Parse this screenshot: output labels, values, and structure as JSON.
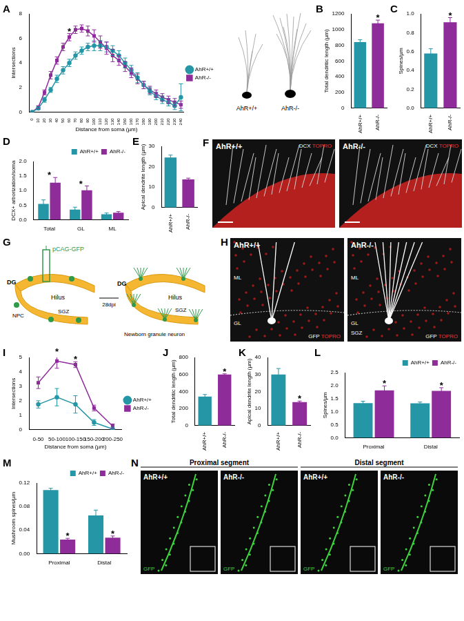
{
  "chart_data": [
    {
      "panel": "A",
      "type": "line",
      "ylabel": "Intersections",
      "xlabel": "Distance from soma (µm)",
      "categories": [
        "0",
        "10",
        "20",
        "30",
        "40",
        "50",
        "60",
        "70",
        "80",
        "90",
        "100",
        "110",
        "120",
        "130",
        "140",
        "150",
        "160",
        "170",
        "180",
        "190",
        "200",
        "210",
        "220",
        "230",
        "240"
      ],
      "ylim": [
        0,
        8
      ],
      "yticks": [
        0,
        2,
        4,
        6,
        8
      ],
      "grid": false,
      "legend": "right",
      "series": [
        {
          "name": "AhR+/+",
          "color": "#2596a6",
          "marker": "circle",
          "values": [
            0,
            0.3,
            1,
            1.8,
            2.7,
            3.4,
            4,
            4.6,
            5,
            5.3,
            5.4,
            5.4,
            5.3,
            5,
            4.6,
            4,
            3.4,
            2.8,
            2.2,
            1.7,
            1.3,
            1,
            0.8,
            0.5,
            1.2
          ],
          "errors": [
            0,
            0.1,
            0.2,
            0.2,
            0.3,
            0.3,
            0.3,
            0.3,
            0.3,
            0.3,
            0.4,
            0.4,
            0.4,
            0.4,
            0.4,
            0.4,
            0.4,
            0.4,
            0.3,
            0.3,
            0.3,
            0.3,
            0.3,
            0.3,
            1.1
          ]
        },
        {
          "name": "AhR-/-",
          "color": "#8e2c9a",
          "marker": "square",
          "values": [
            0,
            0.4,
            1.6,
            3,
            4.2,
            5.3,
            6.1,
            6.7,
            6.8,
            6.6,
            6.2,
            5.7,
            5.2,
            4.6,
            4.2,
            3.7,
            3.2,
            2.7,
            2.2,
            1.8,
            1.5,
            1.2,
            1,
            0.8,
            0.6
          ],
          "errors": [
            0,
            0.1,
            0.2,
            0.3,
            0.3,
            0.3,
            0.3,
            0.3,
            0.3,
            0.4,
            0.5,
            0.5,
            0.5,
            0.5,
            0.4,
            0.4,
            0.4,
            0.4,
            0.3,
            0.3,
            0.3,
            0.3,
            0.3,
            0.3,
            0.3
          ]
        }
      ],
      "annotations": [
        {
          "text": "*",
          "category": "60"
        }
      ]
    },
    {
      "panel": "B",
      "type": "bar",
      "ylabel": "Total dendritic length (µm)",
      "categories": [
        "AhR+/+",
        "AhR-/-"
      ],
      "values": [
        840,
        1080
      ],
      "errors": [
        30,
        40
      ],
      "colors": [
        "#2596a6",
        "#8e2c9a"
      ],
      "ylim": [
        0,
        1200
      ],
      "yticks": [
        0,
        200,
        400,
        600,
        800,
        1000,
        1200
      ],
      "grid": false,
      "annotations": [
        {
          "text": "*",
          "category": "AhR-/-"
        }
      ]
    },
    {
      "panel": "C",
      "type": "bar",
      "ylabel": "Spines/µm",
      "categories": [
        "AhR+/+",
        "AhR-/-"
      ],
      "values": [
        0.58,
        0.91
      ],
      "errors": [
        0.05,
        0.05
      ],
      "colors": [
        "#2596a6",
        "#8e2c9a"
      ],
      "ylim": [
        0,
        1
      ],
      "yticks": [
        {
          "value": 0,
          "label": "0.0"
        },
        0.2,
        0.4,
        0.6,
        0.8,
        {
          "value": 1,
          "label": "1.0"
        }
      ],
      "grid": false,
      "annotations": [
        {
          "text": "*",
          "category": "AhR-/-"
        }
      ]
    },
    {
      "panel": "D",
      "type": "bar",
      "ylabel": "DCX+ arborization/soma",
      "categories": [
        "Total",
        "GL",
        "ML"
      ],
      "ylim": [
        0,
        2
      ],
      "yticks": [
        {
          "value": 0,
          "label": "0.0"
        },
        0.5,
        {
          "value": 1,
          "label": "1.0"
        },
        1.5,
        {
          "value": 2,
          "label": "2.0"
        }
      ],
      "grid": false,
      "legend": "top-right",
      "series": [
        {
          "name": "AhR+/+",
          "color": "#2596a6",
          "values": [
            0.54,
            0.35,
            0.19
          ],
          "errors": [
            0.14,
            0.08,
            0.04
          ]
        },
        {
          "name": "AhR-/-",
          "color": "#8e2c9a",
          "values": [
            1.27,
            1.01,
            0.24
          ],
          "errors": [
            0.18,
            0.15,
            0.04
          ]
        }
      ],
      "annotations": [
        {
          "text": "*",
          "category": "Total"
        },
        {
          "text": "*",
          "category": "GL"
        }
      ]
    },
    {
      "panel": "E",
      "type": "bar",
      "ylabel": "Apical dendrite length (µm)",
      "categories": [
        "AhR+/+",
        "AhR-/-"
      ],
      "values": [
        24.5,
        13.8
      ],
      "errors": [
        1.2,
        0.6
      ],
      "colors": [
        "#2596a6",
        "#8e2c9a"
      ],
      "ylim": [
        0,
        30
      ],
      "yticks": [
        0,
        10,
        20,
        30
      ],
      "grid": false
    },
    {
      "panel": "I",
      "type": "line",
      "ylabel": "Intersections",
      "xlabel": "Distance from soma (µm)",
      "categories": [
        "0-50",
        "50-100",
        "100-150",
        "150-200",
        "200-250"
      ],
      "ylim": [
        0,
        5
      ],
      "yticks": [
        0,
        1,
        2,
        3,
        4,
        5
      ],
      "grid": false,
      "legend": "right",
      "series": [
        {
          "name": "AhR+/+",
          "color": "#2596a6",
          "marker": "circle",
          "values": [
            1.75,
            2.25,
            1.75,
            0.5,
            0.05
          ],
          "errors": [
            0.25,
            0.6,
            0.6,
            0.2,
            0.05
          ]
        },
        {
          "name": "AhR-/-",
          "color": "#8e2c9a",
          "marker": "square",
          "values": [
            3.25,
            4.75,
            4.5,
            1.5,
            0.25
          ],
          "errors": [
            0.4,
            0.5,
            0.2,
            0.2,
            0.15
          ]
        }
      ],
      "annotations": [
        {
          "text": "*",
          "category": "50-100"
        },
        {
          "text": "*",
          "category": "100-150"
        }
      ]
    },
    {
      "panel": "J",
      "type": "bar",
      "ylabel": "Total dendritic length (µm)",
      "categories": [
        "AhR+/+",
        "AhR-/-"
      ],
      "values": [
        340,
        600
      ],
      "errors": [
        25,
        8
      ],
      "colors": [
        "#2596a6",
        "#8e2c9a"
      ],
      "ylim": [
        0,
        800
      ],
      "yticks": [
        0,
        200,
        400,
        600,
        800
      ],
      "grid": false,
      "annotations": [
        {
          "text": "*",
          "category": "AhR-/-"
        }
      ]
    },
    {
      "panel": "K",
      "type": "bar",
      "ylabel": "Apical dendrite length (µm)",
      "categories": [
        "AhR+/+",
        "AhR-/-"
      ],
      "values": [
        30,
        13.8
      ],
      "errors": [
        3.5,
        0.6
      ],
      "colors": [
        "#2596a6",
        "#8e2c9a"
      ],
      "ylim": [
        0,
        40
      ],
      "yticks": [
        0,
        10,
        20,
        30,
        40
      ],
      "grid": false,
      "annotations": [
        {
          "text": "*",
          "category": "AhR-/-"
        }
      ]
    },
    {
      "panel": "L",
      "type": "bar",
      "ylabel": "Spines/µm",
      "categories": [
        "Proximal",
        "Distal"
      ],
      "ylim": [
        0,
        2.5
      ],
      "yticks": [
        {
          "value": 0,
          "label": "0.0"
        },
        0.5,
        {
          "value": 1,
          "label": "1.0"
        },
        1.5,
        {
          "value": 2,
          "label": "2.0"
        },
        2.5
      ],
      "grid": false,
      "legend": "top-right",
      "series": [
        {
          "name": "AhR+/+",
          "color": "#2596a6",
          "values": [
            1.33,
            1.32
          ],
          "errors": [
            0.07,
            0.05
          ]
        },
        {
          "name": "AhR-/-",
          "color": "#8e2c9a",
          "values": [
            1.82,
            1.8
          ],
          "errors": [
            0.17,
            0.12
          ]
        }
      ],
      "annotations": [
        {
          "text": "*",
          "category": "Proximal",
          "series": "AhR-/-"
        },
        {
          "text": "*",
          "category": "Distal",
          "series": "AhR-/-"
        }
      ]
    },
    {
      "panel": "M",
      "type": "bar",
      "ylabel": "Mushroom spines/µm",
      "categories": [
        "Proximal",
        "Distal"
      ],
      "ylim": [
        0,
        0.12
      ],
      "yticks": [
        {
          "value": 0,
          "label": "0.00"
        },
        {
          "value": 0.04,
          "label": "0.04"
        },
        {
          "value": 0.08,
          "label": "0.08"
        },
        {
          "value": 0.12,
          "label": "0.12"
        }
      ],
      "grid": false,
      "legend": "top-right",
      "series": [
        {
          "name": "AhR+/+",
          "color": "#2596a6",
          "values": [
            0.108,
            0.065
          ],
          "errors": [
            0.003,
            0.009
          ]
        },
        {
          "name": "AhR-/-",
          "color": "#8e2c9a",
          "values": [
            0.024,
            0.027
          ],
          "errors": [
            0.002,
            0.003
          ]
        }
      ],
      "annotations": [
        {
          "text": "*",
          "category": "Proximal",
          "series": "AhR-/-"
        },
        {
          "text": "*",
          "category": "Distal",
          "series": "AhR-/-"
        }
      ]
    }
  ],
  "neuron_tracings": {
    "labels": [
      "AhR+/+",
      "AhR-/-"
    ]
  },
  "panel_F": {
    "panel": "F",
    "images": [
      {
        "genotype": "AhR+/+",
        "stains": [
          "DCX",
          "TOPRO"
        ]
      },
      {
        "genotype": "AhR-/-",
        "stains": [
          "DCX",
          "TOPRO"
        ]
      }
    ]
  },
  "panel_G": {
    "panel": "G",
    "vector": "pCAG-GFP",
    "before": {
      "labels": [
        "DG",
        "Hilus",
        "NPC",
        "SGZ"
      ]
    },
    "interval": "28dpi",
    "after": {
      "labels": [
        "DG",
        "Hilus",
        "SGZ",
        "Newborn granule neuron"
      ]
    }
  },
  "panel_H": {
    "panel": "H",
    "images": [
      {
        "genotype": "AhR+/+",
        "regions": [
          "ML",
          "GL"
        ],
        "stains": [
          "GFP",
          "TOPRO"
        ]
      },
      {
        "genotype": "AhR-/-",
        "regions": [
          "ML",
          "GL",
          "SGZ"
        ],
        "stains": [
          "GFP",
          "TOPRO"
        ]
      }
    ]
  },
  "panel_N": {
    "panel": "N",
    "stain": "GFP",
    "segments": [
      {
        "title": "Proximal segment",
        "images": [
          "AhR+/+",
          "AhR-/-"
        ]
      },
      {
        "title": "Distal segment",
        "images": [
          "AhR+/+",
          "AhR-/-"
        ]
      }
    ]
  }
}
